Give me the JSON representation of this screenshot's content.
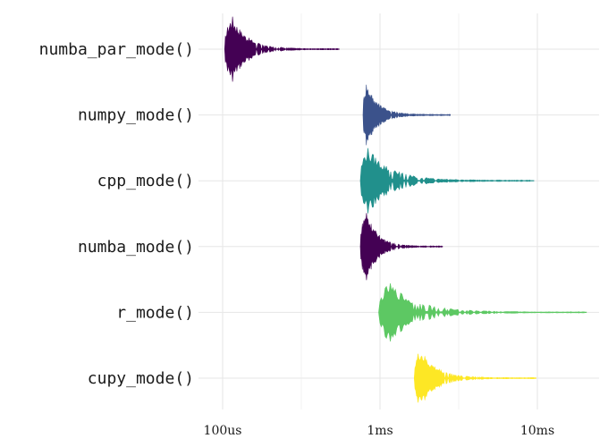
{
  "chart_data": {
    "type": "violin",
    "orientation": "horizontal",
    "x_scale": "log10",
    "x_unit": "seconds",
    "xlim": [
      7e-05,
      0.023
    ],
    "x_ticks": [
      {
        "value": 0.0001,
        "label": "100us"
      },
      {
        "value": 0.001,
        "label": "1ms"
      },
      {
        "value": 0.01,
        "label": "10ms"
      }
    ],
    "xlabel": "",
    "ylabel": "",
    "title": "",
    "grid": true,
    "legend": "none",
    "categories": [
      "numba_par_mode()",
      "numpy_mode()",
      "cpp_mode()",
      "numba_mode()",
      "r_mode()",
      "cupy_mode()"
    ],
    "series": [
      {
        "category": "numba_par_mode()",
        "color": "#440154",
        "min": 0.000103,
        "max": 0.00055,
        "mode": 0.000115,
        "max_halfwidth": 31
      },
      {
        "category": "numpy_mode()",
        "color": "#3b528b",
        "min": 0.00078,
        "max": 0.0028,
        "mode": 0.00082,
        "max_halfwidth": 30
      },
      {
        "category": "cpp_mode()",
        "color": "#21908c",
        "min": 0.00075,
        "max": 0.0095,
        "mode": 0.00083,
        "max_halfwidth": 31
      },
      {
        "category": "numba_mode()",
        "color": "#440154",
        "min": 0.00075,
        "max": 0.0025,
        "mode": 0.00082,
        "max_halfwidth": 34
      },
      {
        "category": "r_mode()",
        "color": "#5dc863",
        "min": 0.00098,
        "max": 0.0205,
        "mode": 0.00115,
        "max_halfwidth": 27
      },
      {
        "category": "cupy_mode()",
        "color": "#fde725",
        "min": 0.00165,
        "max": 0.0098,
        "mode": 0.0018,
        "max_halfwidth": 27
      }
    ]
  }
}
